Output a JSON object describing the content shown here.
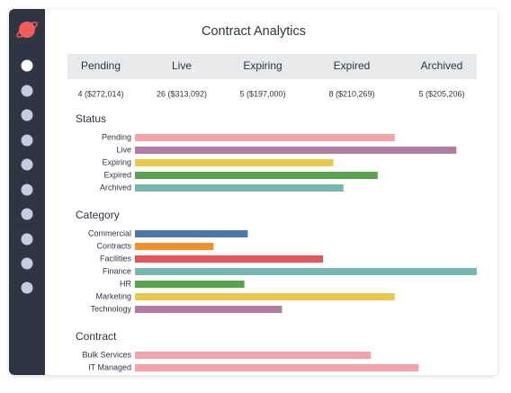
{
  "header": {
    "title": "Contract Analytics"
  },
  "table": {
    "columns": [
      "Pending",
      "Live",
      "Expiring",
      "Expired",
      "Archived"
    ],
    "rows": [
      [
        "4 ($272,014)",
        "26 ($313,092)",
        "5 ($197,000)",
        "8 ($210,269)",
        "5 ($205,206)"
      ]
    ]
  },
  "chart_data": [
    {
      "type": "hbar",
      "title": "Status",
      "xlim": [
        0,
        100
      ],
      "categories": [
        "Pending",
        "Live",
        "Expiring",
        "Expired",
        "Archived"
      ],
      "values": [
        76,
        94,
        58,
        71,
        61
      ],
      "colors": [
        "#f4a3ad",
        "#b07aa1",
        "#e9c84a",
        "#59a14f",
        "#76b7b2"
      ]
    },
    {
      "type": "hbar",
      "title": "Category",
      "xlim": [
        0,
        100
      ],
      "categories": [
        "Commercial",
        "Contracts",
        "Facilities",
        "Finance",
        "HR",
        "Marketing",
        "Technology"
      ],
      "values": [
        33,
        23,
        55,
        100,
        32,
        76,
        43
      ],
      "colors": [
        "#4e79a7",
        "#f28e2b",
        "#e15759",
        "#76b7b2",
        "#59a14f",
        "#e9c84a",
        "#b07aa1"
      ]
    },
    {
      "type": "hbar",
      "title": "Contract",
      "xlim": [
        0,
        100
      ],
      "categories": [
        "Bulk Services",
        "IT Managed"
      ],
      "values": [
        69,
        83
      ],
      "colors": [
        "#f4a3ad",
        "#f4a3ad"
      ]
    }
  ]
}
